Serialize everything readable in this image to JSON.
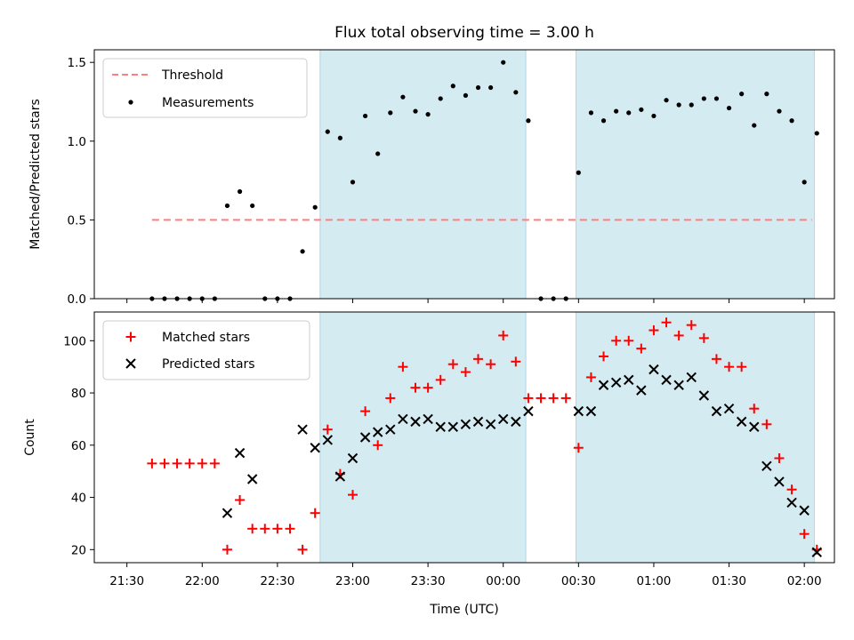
{
  "figure": {
    "title": "Flux total observing time = 3.00 h",
    "xlabel": "Time (UTC)"
  },
  "chart_data": [
    {
      "type": "scatter",
      "ylabel": "Matched/Predicted stars",
      "ylim": [
        0,
        1.58
      ],
      "yticks": [
        0.0,
        0.5,
        1.0,
        1.5
      ],
      "ytick_labels": [
        "0.0",
        "0.5",
        "1.0",
        "1.5"
      ],
      "threshold": {
        "label": "Threshold",
        "value": 0.5,
        "x_start": "21:40",
        "x_end": "02:03",
        "color": "#ff7f7f"
      },
      "legend_loc": "upper-left",
      "series": [
        {
          "name": "Measurements",
          "color": "#000000",
          "marker": "dot",
          "x": [
            "21:40",
            "21:45",
            "21:50",
            "21:55",
            "22:00",
            "22:05",
            "22:10",
            "22:15",
            "22:20",
            "22:25",
            "22:30",
            "22:35",
            "22:40",
            "22:45",
            "22:50",
            "22:55",
            "23:00",
            "23:05",
            "23:10",
            "23:15",
            "23:20",
            "23:25",
            "23:30",
            "23:35",
            "23:40",
            "23:45",
            "23:50",
            "23:55",
            "00:00",
            "00:05",
            "00:10",
            "00:15",
            "00:20",
            "00:25",
            "00:30",
            "00:35",
            "00:40",
            "00:45",
            "00:50",
            "00:55",
            "01:00",
            "01:05",
            "01:10",
            "01:15",
            "01:20",
            "01:25",
            "01:30",
            "01:35",
            "01:40",
            "01:45",
            "01:50",
            "01:55",
            "02:00",
            "02:05"
          ],
          "y": [
            0,
            0,
            0,
            0,
            0,
            0,
            0.59,
            0.68,
            0.59,
            0,
            0,
            0,
            0.3,
            0.58,
            1.06,
            1.02,
            0.74,
            1.16,
            0.92,
            1.18,
            1.28,
            1.19,
            1.17,
            1.27,
            1.35,
            1.29,
            1.34,
            1.34,
            1.5,
            1.31,
            1.13,
            0,
            0,
            0,
            0.8,
            1.18,
            1.13,
            1.19,
            1.18,
            1.2,
            1.16,
            1.26,
            1.23,
            1.23,
            1.27,
            1.27,
            1.21,
            1.3,
            1.1,
            1.3,
            1.19,
            1.13,
            0.74,
            1.05
          ]
        }
      ]
    },
    {
      "type": "scatter",
      "ylabel": "Count",
      "ylim": [
        15,
        111
      ],
      "yticks": [
        20,
        40,
        60,
        80,
        100
      ],
      "ytick_labels": [
        "20",
        "40",
        "60",
        "80",
        "100"
      ],
      "legend_loc": "upper-left",
      "series": [
        {
          "name": "Matched stars",
          "color": "#ff0000",
          "marker": "plus",
          "x": [
            "21:40",
            "21:45",
            "21:50",
            "21:55",
            "22:00",
            "22:05",
            "22:10",
            "22:15",
            "22:20",
            "22:25",
            "22:30",
            "22:35",
            "22:40",
            "22:45",
            "22:50",
            "22:55",
            "23:00",
            "23:05",
            "23:10",
            "23:15",
            "23:20",
            "23:25",
            "23:30",
            "23:35",
            "23:40",
            "23:45",
            "23:50",
            "23:55",
            "00:00",
            "00:05",
            "00:10",
            "00:15",
            "00:20",
            "00:25",
            "00:30",
            "00:35",
            "00:40",
            "00:45",
            "00:50",
            "00:55",
            "01:00",
            "01:05",
            "01:10",
            "01:15",
            "01:20",
            "01:25",
            "01:30",
            "01:35",
            "01:40",
            "01:45",
            "01:50",
            "01:55",
            "02:00",
            "02:05"
          ],
          "y": [
            53,
            53,
            53,
            53,
            53,
            53,
            20,
            39,
            28,
            28,
            28,
            28,
            20,
            34,
            66,
            49,
            41,
            73,
            60,
            78,
            90,
            82,
            82,
            85,
            91,
            88,
            93,
            91,
            102,
            92,
            78,
            78,
            78,
            78,
            59,
            86,
            94,
            100,
            100,
            97,
            104,
            107,
            102,
            106,
            101,
            93,
            90,
            90,
            74,
            68,
            55,
            43,
            26,
            20
          ]
        },
        {
          "name": "Predicted stars",
          "color": "#000000",
          "marker": "x",
          "x": [
            "22:10",
            "22:15",
            "22:20",
            "22:40",
            "22:45",
            "22:50",
            "22:55",
            "23:00",
            "23:05",
            "23:10",
            "23:15",
            "23:20",
            "23:25",
            "23:30",
            "23:35",
            "23:40",
            "23:45",
            "23:50",
            "23:55",
            "00:00",
            "00:05",
            "00:10",
            "00:30",
            "00:35",
            "00:40",
            "00:45",
            "00:50",
            "00:55",
            "01:00",
            "01:05",
            "01:10",
            "01:15",
            "01:20",
            "01:25",
            "01:30",
            "01:35",
            "01:40",
            "01:45",
            "01:50",
            "01:55",
            "02:00",
            "02:05"
          ],
          "y": [
            34,
            57,
            47,
            66,
            59,
            62,
            48,
            55,
            63,
            65,
            66,
            70,
            69,
            70,
            67,
            67,
            68,
            69,
            68,
            70,
            69,
            73,
            73,
            73,
            83,
            84,
            85,
            81,
            89,
            85,
            83,
            86,
            79,
            73,
            74,
            69,
            67,
            52,
            46,
            38,
            35,
            19
          ]
        }
      ]
    }
  ],
  "shared_x": {
    "origin": "21:30",
    "xlim": [
      "21:17",
      "02:12"
    ],
    "ticks": [
      "21:30",
      "22:00",
      "22:30",
      "23:00",
      "23:30",
      "00:00",
      "00:30",
      "01:00",
      "01:30",
      "02:00"
    ],
    "shaded_regions": [
      {
        "start": "22:47",
        "end": "00:09",
        "color": "#add8e6"
      },
      {
        "start": "00:29",
        "end": "02:04",
        "color": "#add8e6"
      }
    ]
  }
}
